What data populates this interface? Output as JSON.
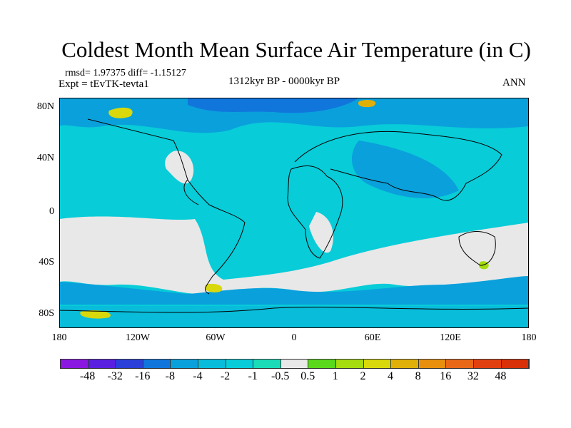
{
  "title": "Coldest Month Mean Surface Air Temperature (in C)",
  "stats": "rmsd= 1.97375 diff= -1.15127",
  "expt": "Expt = tEvTK-tevta1",
  "period": "1312kyr BP - 0000kyr BP",
  "season": "ANN",
  "lat_labels": [
    "80N",
    "40N",
    "0",
    "40S",
    "80S"
  ],
  "lon_labels": [
    "180",
    "120W",
    "60W",
    "0",
    "60E",
    "120E",
    "180"
  ],
  "colorbar": {
    "labels": [
      "-48",
      "-32",
      "-16",
      "-8",
      "-4",
      "-2",
      "-1",
      "-0.5",
      "0.5",
      "1",
      "2",
      "4",
      "8",
      "16",
      "32",
      "48"
    ],
    "colors": [
      "#8a18e0",
      "#5a20e0",
      "#2a40d8",
      "#1076dc",
      "#0aa0dc",
      "#08bcda",
      "#08ccd8",
      "#1cdcb8",
      "#e8e8e8",
      "#5ad81c",
      "#a4dc10",
      "#d8d80c",
      "#e0b008",
      "#e8900e",
      "#e86818",
      "#e04010",
      "#d83008"
    ]
  }
}
